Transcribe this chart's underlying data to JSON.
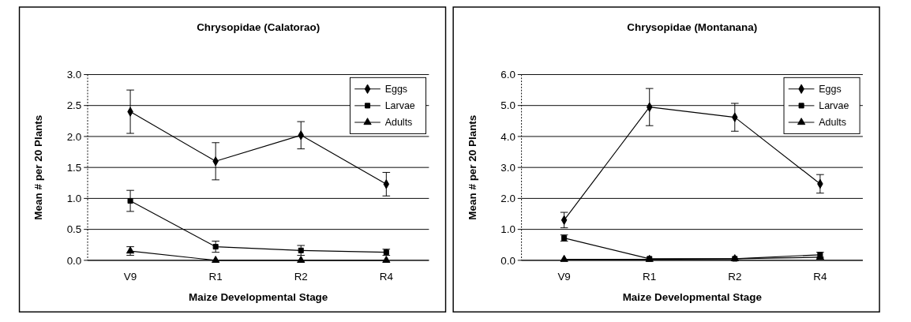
{
  "chart_data": [
    {
      "type": "line",
      "title": "Chrysopidae (Calatorao)",
      "xlabel": "Maize Developmental Stage",
      "ylabel": "Mean # per 20 Plants",
      "categories": [
        "V9",
        "R1",
        "R2",
        "R4"
      ],
      "ylim": [
        0,
        3
      ],
      "yticks": [
        {
          "value": 0,
          "label": "0.0"
        },
        {
          "value": 0.5,
          "label": "0.5"
        },
        {
          "value": 1,
          "label": "1.0"
        },
        {
          "value": 1.5,
          "label": "1.5"
        },
        {
          "value": 2,
          "label": "2.0"
        },
        {
          "value": 2.5,
          "label": "2.5"
        },
        {
          "value": 3,
          "label": "3.0"
        }
      ],
      "grid": "y",
      "legend": "top right",
      "series": [
        {
          "name": "Eggs",
          "color": "#000000",
          "marker": "diamond",
          "values": [
            2.4,
            1.6,
            2.02,
            1.23
          ],
          "errors": [
            0.35,
            0.3,
            0.22,
            0.19
          ]
        },
        {
          "name": "Larvae",
          "color": "#000000",
          "marker": "square",
          "values": [
            0.96,
            0.22,
            0.16,
            0.13
          ],
          "errors": [
            0.17,
            0.09,
            0.08,
            0.05
          ]
        },
        {
          "name": "Adults",
          "color": "#000000",
          "marker": "triangle",
          "values": [
            0.15,
            0,
            0,
            0
          ],
          "errors": [
            0.07,
            null,
            null,
            null
          ]
        }
      ]
    },
    {
      "type": "line",
      "title": "Chrysopidae (Montanana)",
      "xlabel": "Maize Developmental Stage",
      "ylabel": "Mean # per 20 Plants",
      "categories": [
        "V9",
        "R1",
        "R2",
        "R4"
      ],
      "ylim": [
        0,
        6
      ],
      "yticks": [
        {
          "value": 0,
          "label": "0.0"
        },
        {
          "value": 1,
          "label": "1.0"
        },
        {
          "value": 2,
          "label": "2.0"
        },
        {
          "value": 3,
          "label": "3.0"
        },
        {
          "value": 4,
          "label": "4.0"
        },
        {
          "value": 5,
          "label": "5.0"
        },
        {
          "value": 6,
          "label": "6.0"
        }
      ],
      "grid": "y",
      "legend": "top right",
      "series": [
        {
          "name": "Eggs",
          "color": "#000000",
          "marker": "diamond",
          "values": [
            1.3,
            4.95,
            4.62,
            2.47
          ],
          "errors": [
            0.25,
            0.6,
            0.45,
            0.3
          ]
        },
        {
          "name": "Larvae",
          "color": "#000000",
          "marker": "square",
          "values": [
            0.72,
            0.05,
            0.05,
            0.18
          ],
          "errors": [
            0.1,
            null,
            null,
            0.08
          ]
        },
        {
          "name": "Adults",
          "color": "#000000",
          "marker": "triangle",
          "values": [
            0.03,
            0.03,
            0.05,
            0.1
          ],
          "errors": [
            null,
            null,
            null,
            null
          ]
        }
      ]
    }
  ]
}
